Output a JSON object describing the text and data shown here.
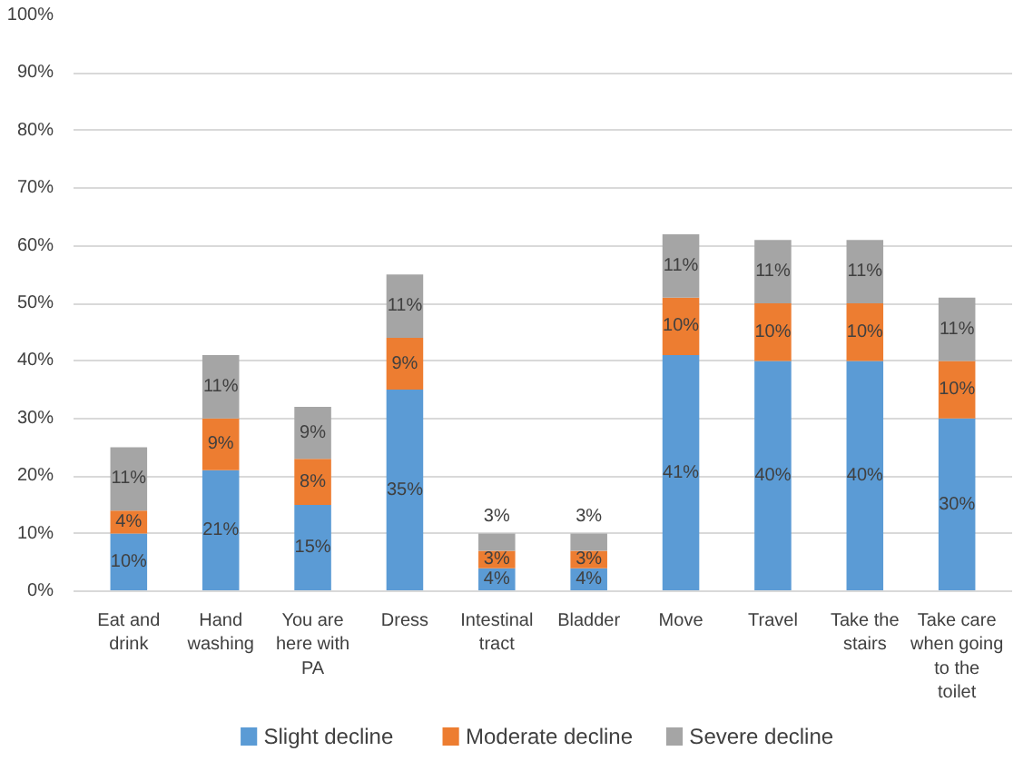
{
  "chart_data": {
    "type": "bar",
    "stacked": true,
    "categories": [
      "Eat and drink",
      "Hand washing",
      "You are here with PA",
      "Dress",
      "Intestinal tract",
      "Bladder",
      "Move",
      "Travel",
      "Take the stairs",
      "Take care when going to the toilet"
    ],
    "series": [
      {
        "name": "Slight decline",
        "color": "#5b9bd5",
        "values": [
          10,
          21,
          15,
          35,
          4,
          4,
          41,
          40,
          40,
          30
        ],
        "value_labels": [
          "10%",
          "21%",
          "15%",
          "35%",
          "4%",
          "4%",
          "41%",
          "40%",
          "40%",
          "30%"
        ]
      },
      {
        "name": "Moderate decline",
        "color": "#ed7d31",
        "values": [
          4,
          9,
          8,
          9,
          3,
          3,
          10,
          10,
          10,
          10
        ],
        "value_labels": [
          "4%",
          "9%",
          "8%",
          "9%",
          "3%",
          "3%",
          "10%",
          "10%",
          "10%",
          "10%"
        ]
      },
      {
        "name": "Severe decline",
        "color": "#a5a5a5",
        "values": [
          11,
          11,
          9,
          11,
          3,
          3,
          11,
          11,
          11,
          11
        ],
        "value_labels": [
          "11%",
          "11%",
          "9%",
          "11%",
          "3%",
          "3%",
          "11%",
          "11%",
          "11%",
          "11%"
        ]
      }
    ],
    "ylim": [
      0,
      100
    ],
    "yticks": [
      {
        "value": 0,
        "label": "0%"
      },
      {
        "value": 10,
        "label": "10%"
      },
      {
        "value": 20,
        "label": "20%"
      },
      {
        "value": 30,
        "label": "30%"
      },
      {
        "value": 40,
        "label": "40%"
      },
      {
        "value": 50,
        "label": "50%"
      },
      {
        "value": 60,
        "label": "60%"
      },
      {
        "value": 70,
        "label": "70%"
      },
      {
        "value": 80,
        "label": "80%"
      },
      {
        "value": 90,
        "label": "90%"
      },
      {
        "value": 100,
        "label": "100%"
      }
    ],
    "grid": "y",
    "legend": "bottom"
  }
}
